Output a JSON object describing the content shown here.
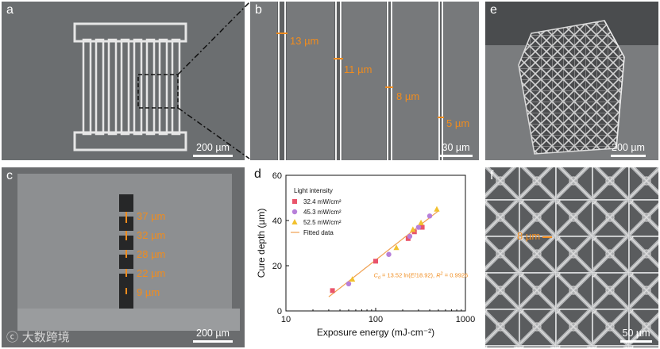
{
  "panels": {
    "a": {
      "label": "a",
      "scale": "200 µm"
    },
    "b": {
      "label": "b",
      "scale": "30 µm",
      "widths": [
        "13 µm",
        "11 µm",
        "8 µm",
        "5 µm"
      ]
    },
    "c": {
      "label": "c",
      "scale": "200 µm",
      "depths": [
        "37 µm",
        "32 µm",
        "28 µm",
        "22 µm",
        "9 µm"
      ]
    },
    "d": {
      "label": "d"
    },
    "e": {
      "label": "e",
      "scale": "200 µm"
    },
    "f": {
      "label": "f",
      "scale": "50 µm",
      "width": "8 µm"
    }
  },
  "watermark": "大数跨境",
  "chart_data": {
    "type": "scatter",
    "xlabel": "Exposure energy (mJ·cm⁻²)",
    "ylabel": "Cure depth (µm)",
    "xscale": "log",
    "xlim": [
      10,
      1000
    ],
    "ylim": [
      0,
      60
    ],
    "xticks": [
      "10",
      "100",
      "1000"
    ],
    "yticks": [
      "0",
      "20",
      "40",
      "60"
    ],
    "legend_title": "Light intensity",
    "series": [
      {
        "name": "32.4 mW/cm²",
        "color": "#e9546b",
        "marker": "square",
        "x": [
          33,
          100,
          230,
          270,
          330
        ],
        "y": [
          9,
          22,
          32,
          35,
          37
        ]
      },
      {
        "name": "45.3 mW/cm²",
        "color": "#b77fd9",
        "marker": "circle",
        "x": [
          50,
          140,
          240,
          300,
          400
        ],
        "y": [
          12,
          25,
          33,
          37,
          42
        ]
      },
      {
        "name": "52.5 mW/cm²",
        "color": "#f2c12e",
        "marker": "triangle",
        "x": [
          55,
          170,
          260,
          320,
          480
        ],
        "y": [
          14,
          28,
          36,
          39,
          45
        ]
      }
    ],
    "fit": {
      "name": "Fitted data",
      "color": "#f0a050",
      "a": 13.52,
      "b": 18.92,
      "equation": "C  = 13.52 ln(E/18.92), R  = 0.9926",
      "eq_parts": {
        "c": "C",
        "d": "d",
        "rest1": " = 13.52 ln(",
        "e": "E",
        "rest2": "/18.92), ",
        "r": "R",
        "two": "2",
        "rest3": " = 0.9926"
      }
    }
  }
}
